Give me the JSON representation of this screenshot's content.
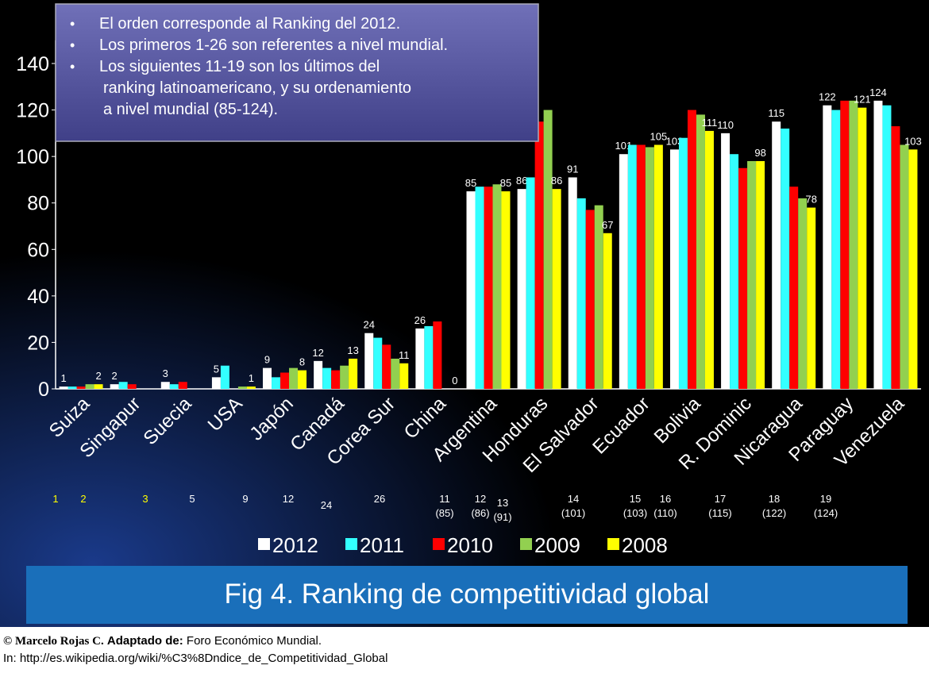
{
  "chart_data": {
    "type": "bar",
    "categories": [
      "Suiza",
      "Singapur",
      "Suecia",
      "USA",
      "Japón",
      "Canadá",
      "Corea Sur",
      "China",
      "Argentina",
      "Honduras",
      "El Salvador",
      "Ecuador",
      "Bolivia",
      "R. Dominic",
      "Nicaragua",
      "Paraguay",
      "Venezuela"
    ],
    "series": [
      {
        "name": "2012",
        "color": "#ffffff",
        "labels": true,
        "values": [
          1,
          2,
          3,
          5,
          9,
          12,
          24,
          26,
          85,
          86,
          91,
          101,
          103,
          110,
          115,
          122,
          124
        ]
      },
      {
        "name": "2011",
        "color": "#33ffff",
        "values": [
          1,
          3,
          2,
          10,
          5,
          9,
          22,
          27,
          87,
          91,
          82,
          105,
          108,
          101,
          112,
          120,
          122
        ]
      },
      {
        "name": "2010",
        "color": "#ff0000",
        "values": [
          1,
          2,
          3,
          null,
          7,
          8,
          19,
          29,
          87,
          115,
          77,
          105,
          120,
          95,
          87,
          124,
          113
        ]
      },
      {
        "name": "2009",
        "color": "#92d050",
        "values": [
          2,
          null,
          null,
          1,
          9,
          10,
          13,
          null,
          88,
          120,
          79,
          104,
          118,
          98,
          82,
          124,
          105
        ]
      },
      {
        "name": "2008",
        "color": "#ffff00",
        "labels": true,
        "values": [
          2,
          null,
          null,
          1,
          8,
          13,
          11,
          0,
          85,
          86,
          67,
          105,
          111,
          98,
          78,
          121,
          103
        ]
      }
    ],
    "ylim": [
      0,
      150
    ],
    "yticks": [
      0,
      20,
      40,
      60,
      80,
      100,
      120,
      140
    ],
    "ranks": [
      [
        "1"
      ],
      [
        "2"
      ],
      [
        "3"
      ],
      [
        "5"
      ],
      [
        "9"
      ],
      [
        "12"
      ],
      [
        "24"
      ],
      [
        "26"
      ],
      [
        "11",
        "(85)"
      ],
      [
        "12",
        "(86)"
      ],
      [
        "13",
        "(91)"
      ],
      [
        "14",
        "(101)"
      ],
      [
        "15",
        "(103)"
      ],
      [
        "16",
        "(110)"
      ],
      [
        "17",
        "(115)"
      ],
      [
        "18",
        "(122)"
      ],
      [
        "19",
        "(124)"
      ]
    ],
    "notes": [
      "El orden corresponde al Ranking del 2012.",
      "Los primeros 1-26 son referentes a nivel mundial.",
      "Los siguientes 11-19 son los últimos del",
      "ranking latinoamericano,  y su ordenamiento",
      "a nivel mundial (85-124)."
    ],
    "caption": "Fig 4. Ranking de competitividad global",
    "credit": {
      "author": "© Marcelo Rojas C.",
      "adapted": "Adaptado de:",
      "source": "Foro Económico  Mundial.",
      "url": "In: http://es.wikipedia.org/wiki/%C3%8Dndice_de_Competitividad_Global"
    }
  }
}
